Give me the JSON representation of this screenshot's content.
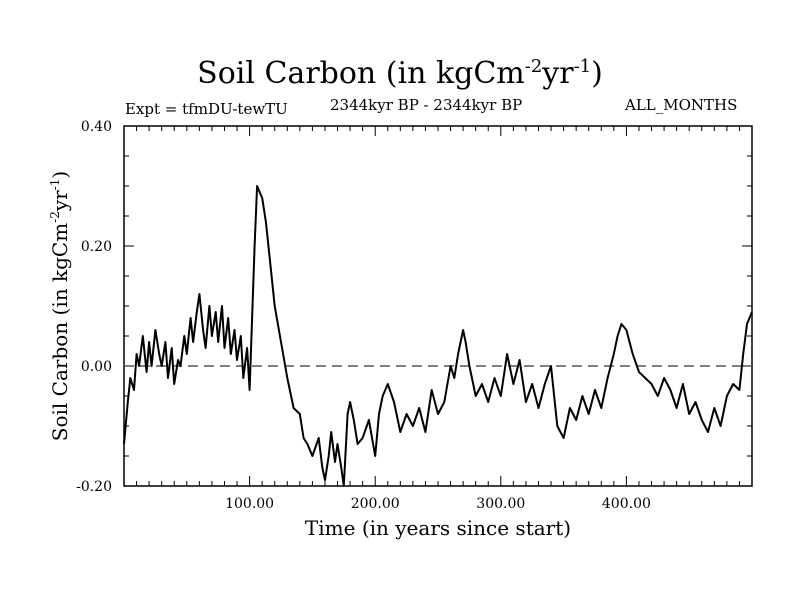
{
  "chart_data": {
    "type": "line",
    "title": "Soil Carbon (in kgCm",
    "title_sup1": "-2",
    "title_mid": "yr",
    "title_sup2": "-1",
    "title_end": ")",
    "expt_label": "Expt = tfmDU-tewTU",
    "period_label": "2344kyr BP - 2344kyr BP",
    "season_label": "ALL_MONTHS",
    "xlabel": "Time (in years since start)",
    "ylabel": "Soil Carbon (in kgCm",
    "ylabel_sup1": "-2",
    "ylabel_mid": "yr",
    "ylabel_sup2": "-1",
    "ylabel_end": ")",
    "xlim": [
      0,
      500
    ],
    "ylim": [
      -0.2,
      0.4
    ],
    "xticks": [
      100,
      200,
      300,
      400
    ],
    "xtick_labels": [
      "100.00",
      "200.00",
      "300.00",
      "400.00"
    ],
    "yticks": [
      -0.2,
      0.0,
      0.2,
      0.4
    ],
    "ytick_labels": [
      "-0.20",
      "0.00",
      "0.20",
      "0.40"
    ],
    "reference_line": 0.0,
    "series": [
      {
        "name": "Soil Carbon",
        "x": [
          0,
          3,
          5,
          8,
          10,
          12,
          15,
          18,
          20,
          22,
          25,
          28,
          30,
          33,
          35,
          38,
          40,
          43,
          45,
          48,
          50,
          53,
          55,
          58,
          60,
          63,
          65,
          68,
          70,
          73,
          75,
          78,
          80,
          83,
          85,
          88,
          90,
          93,
          95,
          98,
          100,
          102,
          104,
          106,
          108,
          110,
          113,
          116,
          120,
          125,
          130,
          135,
          140,
          143,
          146,
          150,
          155,
          158,
          160,
          163,
          165,
          168,
          170,
          173,
          175,
          178,
          180,
          183,
          186,
          190,
          195,
          200,
          203,
          206,
          210,
          215,
          218,
          220,
          225,
          230,
          235,
          240,
          245,
          250,
          255,
          260,
          263,
          266,
          270,
          272,
          275,
          278,
          280,
          285,
          290,
          295,
          300,
          305,
          310,
          315,
          320,
          325,
          330,
          335,
          340,
          345,
          350,
          355,
          360,
          365,
          370,
          375,
          380,
          385,
          390,
          393,
          396,
          400,
          405,
          410,
          415,
          420,
          425,
          430,
          435,
          440,
          445,
          450,
          455,
          460,
          465,
          470,
          475,
          480,
          485,
          490,
          493,
          496,
          500
        ],
        "values": [
          -0.13,
          -0.06,
          -0.02,
          -0.04,
          0.02,
          0.0,
          0.05,
          -0.01,
          0.04,
          0.0,
          0.06,
          0.02,
          0.0,
          0.04,
          -0.02,
          0.03,
          -0.03,
          0.01,
          0.0,
          0.05,
          0.02,
          0.08,
          0.04,
          0.09,
          0.12,
          0.06,
          0.03,
          0.1,
          0.05,
          0.09,
          0.04,
          0.1,
          0.03,
          0.08,
          0.02,
          0.06,
          0.01,
          0.05,
          -0.02,
          0.03,
          -0.04,
          0.08,
          0.2,
          0.3,
          0.29,
          0.28,
          0.24,
          0.18,
          0.1,
          0.04,
          -0.02,
          -0.07,
          -0.08,
          -0.12,
          -0.13,
          -0.15,
          -0.12,
          -0.17,
          -0.19,
          -0.15,
          -0.11,
          -0.16,
          -0.13,
          -0.17,
          -0.2,
          -0.08,
          -0.06,
          -0.09,
          -0.13,
          -0.12,
          -0.09,
          -0.15,
          -0.08,
          -0.05,
          -0.03,
          -0.06,
          -0.09,
          -0.11,
          -0.08,
          -0.1,
          -0.07,
          -0.11,
          -0.04,
          -0.08,
          -0.06,
          0.0,
          -0.02,
          0.02,
          0.06,
          0.04,
          0.0,
          -0.03,
          -0.05,
          -0.03,
          -0.06,
          -0.02,
          -0.05,
          0.02,
          -0.03,
          0.01,
          -0.06,
          -0.03,
          -0.07,
          -0.03,
          0.0,
          -0.1,
          -0.12,
          -0.07,
          -0.09,
          -0.05,
          -0.08,
          -0.04,
          -0.07,
          -0.02,
          0.02,
          0.05,
          0.07,
          0.06,
          0.02,
          -0.01,
          -0.02,
          -0.03,
          -0.05,
          -0.02,
          -0.04,
          -0.07,
          -0.03,
          -0.08,
          -0.06,
          -0.09,
          -0.11,
          -0.07,
          -0.1,
          -0.05,
          -0.03,
          -0.04,
          0.02,
          0.07,
          0.09
        ]
      }
    ]
  }
}
